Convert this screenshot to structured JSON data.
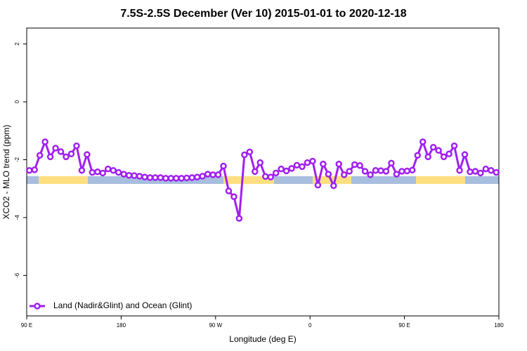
{
  "chart_data": {
    "type": "line",
    "title": "7.5S-2.5S December (Ver 10)   2015-01-01 to 2020-12-18",
    "xlabel": "Longitude (deg E)",
    "ylabel": "XCO2 - MLO trend (ppm)",
    "xlim": [
      90,
      540
    ],
    "xticks": [
      {
        "value": 90,
        "label": "90 E"
      },
      180,
      {
        "value": 270,
        "label": "90 W"
      },
      {
        "value": 360,
        "label": "0"
      },
      {
        "value": 450,
        "label": "90 E"
      },
      {
        "value": 540,
        "label": "180"
      }
    ],
    "ylim": [
      -7.4,
      2.55
    ],
    "yticks": [
      -6,
      -4,
      -2,
      0,
      2
    ],
    "legend": "bottom-left",
    "x": [
      92.5,
      97.5,
      102.5,
      107.5,
      112.5,
      117.5,
      122.5,
      127.5,
      132.5,
      137.5,
      142.5,
      147.5,
      152.5,
      157.5,
      162.5,
      167.5,
      172.5,
      177.5,
      182.5,
      187.5,
      192.5,
      197.5,
      202.5,
      207.5,
      212.5,
      217.5,
      222.5,
      227.5,
      232.5,
      237.5,
      242.5,
      247.5,
      252.5,
      257.5,
      262.5,
      267.5,
      272.5,
      277.5,
      282.5,
      287.5,
      292.5,
      297.5,
      302.5,
      307.5,
      312.5,
      317.5,
      322.5,
      327.5,
      332.5,
      337.5,
      342.5,
      347.5,
      352.5,
      357.5,
      362.5,
      367.5,
      372.5,
      377.5,
      382.5,
      387.5,
      392.5,
      397.5,
      402.5,
      407.5,
      412.5,
      417.5,
      422.5,
      427.5,
      432.5,
      437.5,
      442.5,
      447.5,
      452.5,
      457.5,
      462.5,
      467.5,
      472.5,
      477.5,
      482.5,
      487.5,
      492.5,
      497.5,
      502.5,
      507.5,
      512.5,
      517.5,
      522.5,
      527.5,
      532.5,
      537.5
    ],
    "series": [
      {
        "name": "Land (Nadir&Glint) and Ocean (Glint)",
        "color": "#a020f0",
        "values": [
          -2.37,
          -2.35,
          -1.85,
          -1.38,
          -1.9,
          -1.6,
          -1.72,
          -1.9,
          -1.8,
          -1.52,
          -2.37,
          -1.82,
          -2.44,
          -2.42,
          -2.46,
          -2.32,
          -2.37,
          -2.44,
          -2.5,
          -2.54,
          -2.55,
          -2.57,
          -2.6,
          -2.62,
          -2.62,
          -2.62,
          -2.64,
          -2.64,
          -2.64,
          -2.64,
          -2.63,
          -2.62,
          -2.6,
          -2.57,
          -2.5,
          -2.52,
          -2.52,
          -2.22,
          -3.08,
          -3.28,
          -4.03,
          -1.83,
          -1.73,
          -2.41,
          -2.1,
          -2.58,
          -2.6,
          -2.46,
          -2.32,
          -2.39,
          -2.3,
          -2.19,
          -2.24,
          -2.1,
          -2.05,
          -2.88,
          -2.15,
          -2.5,
          -2.9,
          -2.15,
          -2.52,
          -2.4,
          -2.17,
          -2.2,
          -2.4,
          -2.52,
          -2.37,
          -2.38,
          -2.4,
          -2.12,
          -2.5,
          -2.4,
          -2.39,
          -2.36,
          -1.85,
          -1.38,
          -1.9,
          -1.57,
          -1.68,
          -1.9,
          -1.8,
          -1.52,
          -2.37,
          -1.82,
          -2.42,
          -2.4,
          -2.46,
          -2.32,
          -2.37,
          -2.44
        ]
      }
    ]
  }
}
